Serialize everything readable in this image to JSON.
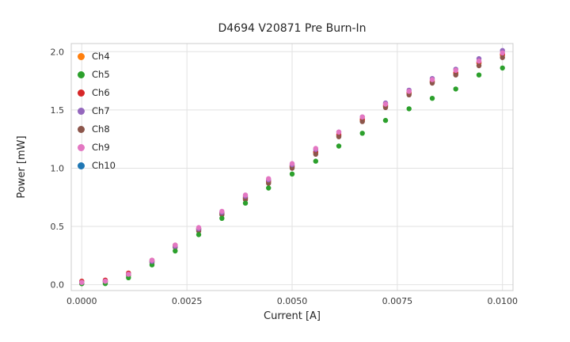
{
  "chart_data": {
    "type": "scatter",
    "title": "D4694 V20871 Pre Burn-In",
    "xlabel": "Current [A]",
    "ylabel": "Power [mW]",
    "xlim": [
      -0.00025,
      0.01025
    ],
    "ylim": [
      -0.05,
      2.07
    ],
    "grid": true,
    "legend_position": "upper-left",
    "xticks": [
      {
        "v": 0.0,
        "label": "0.0000"
      },
      {
        "v": 0.0025,
        "label": "0.0025"
      },
      {
        "v": 0.005,
        "label": "0.0050"
      },
      {
        "v": 0.0075,
        "label": "0.0075"
      },
      {
        "v": 0.01,
        "label": "0.0100"
      }
    ],
    "yticks": [
      {
        "v": 0.0,
        "label": "0.0"
      },
      {
        "v": 0.5,
        "label": "0.5"
      },
      {
        "v": 1.0,
        "label": "1.0"
      },
      {
        "v": 1.5,
        "label": "1.5"
      },
      {
        "v": 2.0,
        "label": "2.0"
      }
    ],
    "x": [
      0.0,
      0.00056,
      0.00111,
      0.00167,
      0.00222,
      0.00278,
      0.00333,
      0.00389,
      0.00444,
      0.005,
      0.00556,
      0.00611,
      0.00667,
      0.00722,
      0.00778,
      0.00833,
      0.00889,
      0.00944,
      0.01
    ],
    "series": [
      {
        "name": "Ch4",
        "color": "#ff7f0e",
        "values": [
          0.02,
          0.03,
          0.09,
          0.2,
          0.33,
          0.47,
          0.61,
          0.74,
          0.88,
          1.01,
          1.13,
          1.28,
          1.41,
          1.53,
          1.64,
          1.74,
          1.81,
          1.9,
          1.97
        ]
      },
      {
        "name": "Ch5",
        "color": "#2ca02c",
        "values": [
          0.01,
          0.01,
          0.06,
          0.17,
          0.29,
          0.43,
          0.57,
          0.7,
          0.83,
          0.95,
          1.06,
          1.19,
          1.3,
          1.41,
          1.51,
          1.6,
          1.68,
          1.8,
          1.86
        ]
      },
      {
        "name": "Ch6",
        "color": "#d62728",
        "values": [
          0.03,
          0.04,
          0.1,
          0.21,
          0.34,
          0.48,
          0.62,
          0.75,
          0.89,
          1.02,
          1.14,
          1.29,
          1.42,
          1.54,
          1.65,
          1.75,
          1.82,
          1.91,
          1.98
        ]
      },
      {
        "name": "Ch7",
        "color": "#9467bd",
        "values": [
          0.02,
          0.03,
          0.09,
          0.2,
          0.33,
          0.48,
          0.62,
          0.76,
          0.9,
          1.03,
          1.16,
          1.31,
          1.44,
          1.56,
          1.67,
          1.77,
          1.85,
          1.94,
          2.01
        ]
      },
      {
        "name": "Ch8",
        "color": "#8c564b",
        "values": [
          0.01,
          0.02,
          0.08,
          0.19,
          0.32,
          0.46,
          0.6,
          0.73,
          0.87,
          1.0,
          1.12,
          1.27,
          1.4,
          1.52,
          1.63,
          1.73,
          1.8,
          1.88,
          1.95
        ]
      },
      {
        "name": "Ch9",
        "color": "#e377c2",
        "values": [
          0.02,
          0.03,
          0.09,
          0.21,
          0.34,
          0.49,
          0.63,
          0.77,
          0.91,
          1.04,
          1.17,
          1.31,
          1.44,
          1.55,
          1.66,
          1.76,
          1.84,
          1.92,
          1.99
        ]
      },
      {
        "name": "Ch10",
        "color": "#1f77b4",
        "values": [
          0.02,
          0.03,
          0.09,
          0.2,
          0.33,
          0.47,
          0.61,
          0.74,
          0.88,
          1.01,
          1.14,
          1.28,
          1.41,
          1.53,
          1.64,
          1.74,
          1.81,
          1.9,
          1.97
        ]
      }
    ],
    "draw_order": [
      "Ch10",
      "Ch4",
      "Ch6",
      "Ch8",
      "Ch5",
      "Ch7",
      "Ch9"
    ]
  }
}
